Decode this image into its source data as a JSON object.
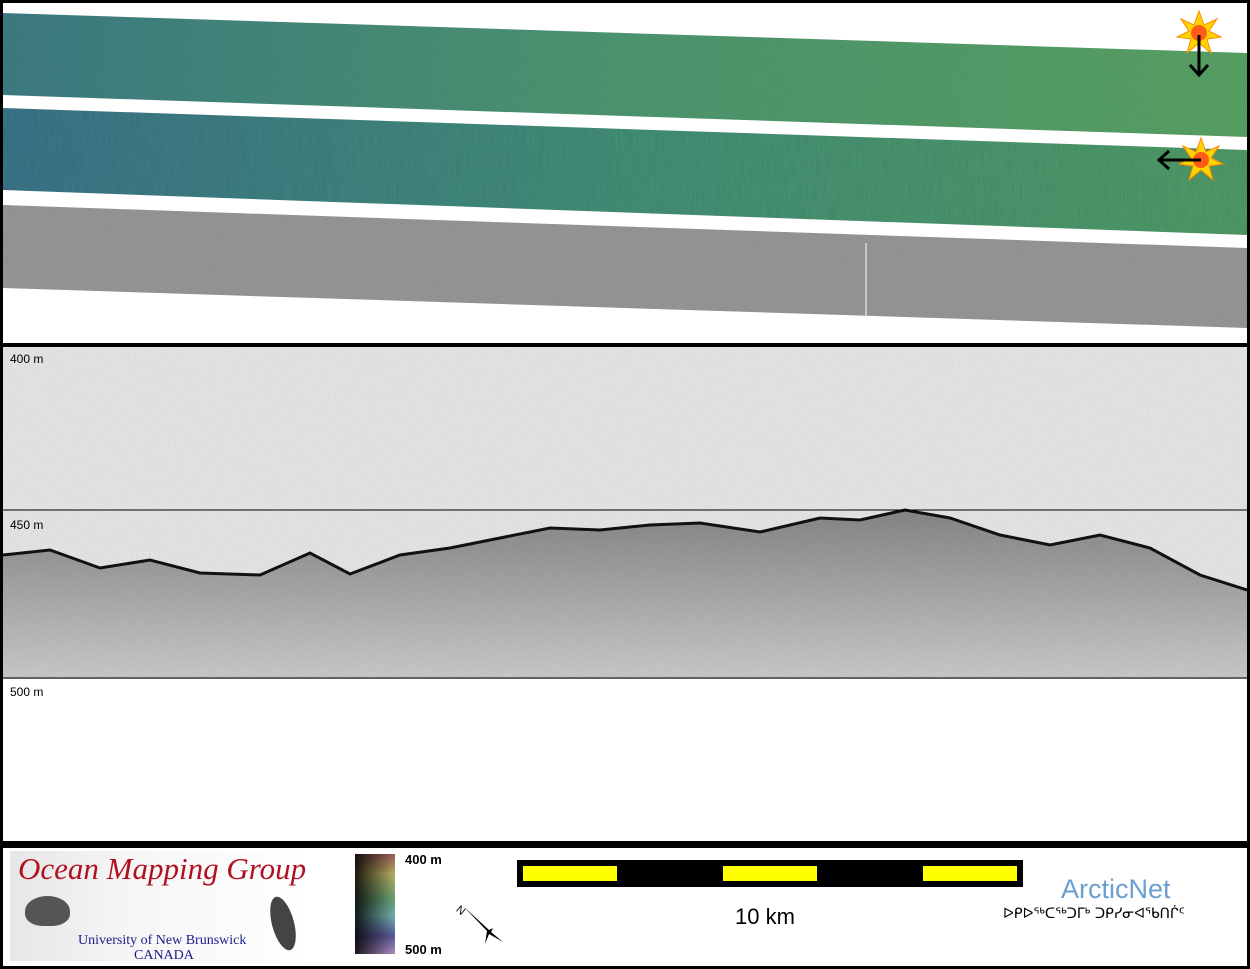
{
  "profile": {
    "depth_labels": [
      "400 m",
      "450 m",
      "500 m"
    ]
  },
  "legend": {
    "logo_omg": {
      "title": "Ocean Mapping Group",
      "line1": "University of New Brunswick",
      "line2": "CANADA"
    },
    "colorbar": {
      "top_label": "400 m",
      "bottom_label": "500 m"
    },
    "north_arrow_label": "N",
    "scale_bar": {
      "label": "10 km",
      "colors": {
        "fill": "#ffff00",
        "dark": "#000000"
      }
    },
    "logo_arcticnet": {
      "title": "ArcticNet",
      "syllabics": "ᐅᑭᐅᖅᑕᖅᑐᒥᒃ ᑐᑭᓯᓂᐊᖃᑎᒌᑦ"
    }
  },
  "icons": [
    "sun-illumination-icon",
    "arrow-down-icon",
    "arrow-left-icon"
  ]
}
